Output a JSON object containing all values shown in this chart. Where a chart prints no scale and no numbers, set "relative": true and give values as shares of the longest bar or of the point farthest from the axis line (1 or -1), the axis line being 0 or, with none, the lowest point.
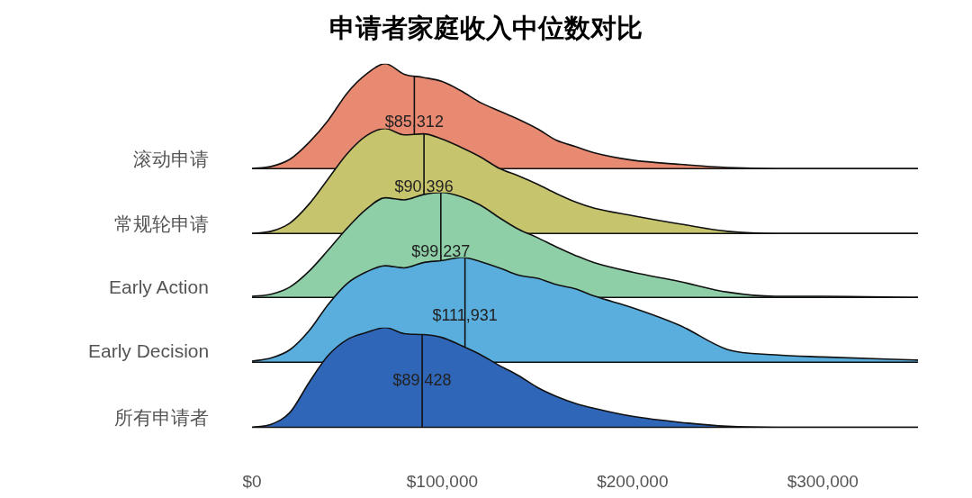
{
  "chart_data": [
    {
      "type": "area",
      "title": "申请者家庭收入中位数对比",
      "relative": true,
      "xlim": [
        0,
        350000
      ],
      "tick_labels": false,
      "x": [
        0,
        10000,
        20000,
        30000,
        40000,
        50000,
        60000,
        70000,
        80000,
        90000,
        100000,
        110000,
        120000,
        130000,
        140000,
        150000,
        160000,
        170000,
        180000,
        200000,
        225000,
        250000,
        275000,
        300000,
        350000
      ],
      "series": [
        {
          "name": "滚动申请",
          "color": "#e88a72",
          "values": [
            0,
            0.02,
            0.09,
            0.25,
            0.46,
            0.72,
            0.9,
            1.0,
            0.9,
            0.87,
            0.83,
            0.74,
            0.63,
            0.55,
            0.47,
            0.38,
            0.27,
            0.21,
            0.15,
            0.08,
            0.04,
            0.01,
            0,
            0,
            0
          ]
        }
      ],
      "ref_lines": [
        {
          "axis": "x",
          "value": 85312,
          "label": "$85,312"
        }
      ]
    },
    {
      "type": "area",
      "relative": true,
      "xlim": [
        0,
        350000
      ],
      "tick_labels": false,
      "x": [
        0,
        10000,
        20000,
        30000,
        40000,
        50000,
        60000,
        70000,
        80000,
        90000,
        100000,
        110000,
        120000,
        130000,
        140000,
        150000,
        160000,
        170000,
        180000,
        200000,
        225000,
        250000,
        275000,
        300000,
        350000
      ],
      "series": [
        {
          "name": "常规轮申请",
          "color": "#c7c46e",
          "values": [
            0,
            0.02,
            0.1,
            0.28,
            0.52,
            0.76,
            0.93,
            1.0,
            0.94,
            0.95,
            0.9,
            0.82,
            0.73,
            0.62,
            0.55,
            0.47,
            0.38,
            0.3,
            0.24,
            0.17,
            0.09,
            0.02,
            0,
            0,
            0
          ]
        }
      ],
      "ref_lines": [
        {
          "axis": "x",
          "value": 90396,
          "label": "$90,396"
        }
      ]
    },
    {
      "type": "area",
      "relative": true,
      "xlim": [
        0,
        350000
      ],
      "tick_labels": false,
      "x": [
        0,
        10000,
        20000,
        30000,
        40000,
        50000,
        60000,
        70000,
        80000,
        90000,
        100000,
        110000,
        120000,
        130000,
        140000,
        150000,
        160000,
        170000,
        180000,
        200000,
        225000,
        250000,
        275000,
        300000,
        350000
      ],
      "series": [
        {
          "name": "Early Action",
          "color": "#8ecfa8",
          "values": [
            0.01,
            0.03,
            0.1,
            0.25,
            0.45,
            0.66,
            0.84,
            0.95,
            0.93,
            0.98,
            1.0,
            0.96,
            0.88,
            0.76,
            0.65,
            0.57,
            0.48,
            0.4,
            0.33,
            0.24,
            0.15,
            0.05,
            0.01,
            0.01,
            0
          ]
        }
      ],
      "ref_lines": [
        {
          "axis": "x",
          "value": 99237,
          "label": "$99,237"
        }
      ]
    },
    {
      "type": "area",
      "relative": true,
      "xlim": [
        0,
        350000
      ],
      "tick_labels": false,
      "x": [
        0,
        10000,
        20000,
        30000,
        40000,
        50000,
        60000,
        70000,
        80000,
        90000,
        100000,
        110000,
        120000,
        130000,
        140000,
        150000,
        160000,
        170000,
        180000,
        200000,
        225000,
        250000,
        275000,
        300000,
        350000
      ],
      "series": [
        {
          "name": "Early Decision",
          "color": "#5aaedd",
          "values": [
            0.01,
            0.04,
            0.12,
            0.3,
            0.55,
            0.75,
            0.86,
            0.92,
            0.9,
            0.95,
            0.97,
            1.0,
            0.96,
            0.9,
            0.83,
            0.8,
            0.74,
            0.7,
            0.63,
            0.52,
            0.35,
            0.12,
            0.07,
            0.05,
            0.02
          ]
        }
      ],
      "ref_lines": [
        {
          "axis": "x",
          "value": 111931,
          "label": "$111,931"
        }
      ]
    },
    {
      "type": "area",
      "relative": true,
      "xlim": [
        0,
        350000
      ],
      "tick_labels": "x",
      "xticks": [
        {
          "value": 0,
          "label": "$0"
        },
        {
          "value": 100000,
          "label": "$100,000"
        },
        {
          "value": 200000,
          "label": "$200,000"
        },
        {
          "value": 300000,
          "label": "$300,000"
        }
      ],
      "x": [
        0,
        10000,
        20000,
        30000,
        40000,
        50000,
        60000,
        70000,
        80000,
        90000,
        100000,
        110000,
        120000,
        130000,
        140000,
        150000,
        160000,
        170000,
        180000,
        200000,
        225000,
        250000,
        275000,
        300000,
        350000
      ],
      "series": [
        {
          "name": "所有申请者",
          "color": "#2f66b8",
          "values": [
            0,
            0.03,
            0.15,
            0.45,
            0.72,
            0.88,
            0.95,
            1.0,
            0.94,
            0.93,
            0.9,
            0.82,
            0.73,
            0.62,
            0.52,
            0.4,
            0.31,
            0.24,
            0.19,
            0.11,
            0.05,
            0.01,
            0,
            0,
            0
          ]
        }
      ],
      "ref_lines": [
        {
          "axis": "x",
          "value": 89428,
          "label": "$89,428"
        }
      ]
    }
  ]
}
